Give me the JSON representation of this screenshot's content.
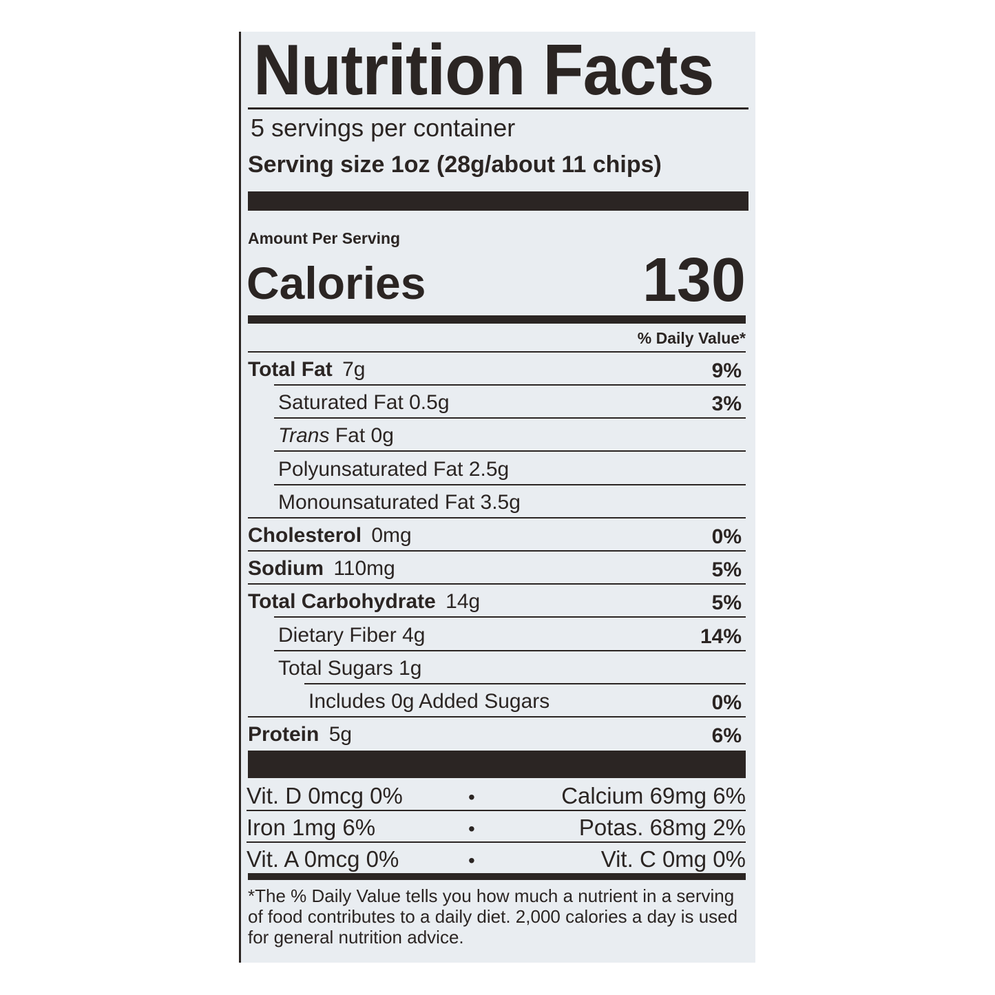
{
  "title": "Nutrition Facts",
  "servings_per_container": "5 servings per container",
  "serving_size_label": "Serving size",
  "serving_size_value": "1oz (28g/about 11 chips)",
  "amount_per_serving": "Amount Per Serving",
  "calories_label": "Calories",
  "calories_value": "130",
  "daily_value_header": "% Daily Value*",
  "nutrients": [
    {
      "name": "Total Fat",
      "amount": "7g",
      "dv": "9%",
      "bold": true,
      "indent": 0
    },
    {
      "name": "Saturated Fat",
      "amount": "0.5g",
      "dv": "3%",
      "bold": false,
      "indent": 1
    },
    {
      "name": "Trans",
      "name_suffix": "Fat",
      "amount": "0g",
      "dv": "",
      "bold": false,
      "italic": true,
      "indent": 1
    },
    {
      "name": "Polyunsaturated Fat",
      "amount": "2.5g",
      "dv": "",
      "bold": false,
      "indent": 1
    },
    {
      "name": "Monounsaturated Fat",
      "amount": "3.5g",
      "dv": "",
      "bold": false,
      "indent": 1
    },
    {
      "name": "Cholesterol",
      "amount": "0mg",
      "dv": "0%",
      "bold": true,
      "indent": 0
    },
    {
      "name": "Sodium",
      "amount": "110mg",
      "dv": "5%",
      "bold": true,
      "indent": 0
    },
    {
      "name": "Total Carbohydrate",
      "amount": "14g",
      "dv": "5%",
      "bold": true,
      "indent": 0
    },
    {
      "name": "Dietary Fiber",
      "amount": "4g",
      "dv": "14%",
      "bold": false,
      "indent": 1
    },
    {
      "name": "Total Sugars",
      "amount": "1g",
      "dv": "",
      "bold": false,
      "indent": 1
    },
    {
      "name": "Includes 0g Added Sugars",
      "amount": "",
      "dv": "0%",
      "bold": false,
      "indent": 2
    },
    {
      "name": "Protein",
      "amount": "5g",
      "dv": "6%",
      "bold": true,
      "indent": 0
    }
  ],
  "vitamins": [
    {
      "left": "Vit. D 0mcg 0%",
      "separator": "•",
      "right": "Calcium 69mg 6%"
    },
    {
      "left": "Iron 1mg 6%",
      "separator": "•",
      "right": "Potas. 68mg 2%"
    },
    {
      "left": "Vit. A 0mcg 0%",
      "separator": "•",
      "right": "Vit. C 0mg 0%"
    }
  ],
  "footnote": "*The % Daily Value tells you how much a nutrient in a serving of food contributes to a daily diet. 2,000 calories a day is used for general nutrition advice.",
  "colors": {
    "ink": "#2b2523",
    "paper": "#e9edf1"
  }
}
